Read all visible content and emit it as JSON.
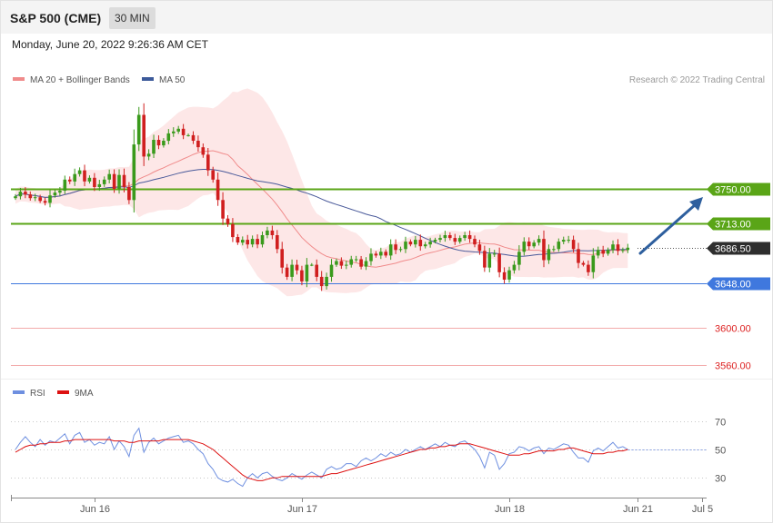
{
  "header": {
    "instrument": "S&P 500 (CME)",
    "timeframe": "30 MIN",
    "datetime": "Monday, June 20, 2022 9:26:36 AM CET",
    "credit": "Research © 2022 Trading Central"
  },
  "colors": {
    "bull": "#3a9a1c",
    "bear": "#d01f1f",
    "band_fill": "#fde3e3",
    "ma20": "#f08b8b",
    "ma50": "#4a5a9a",
    "green_level": "#5aa517",
    "blue_level": "#3f78de",
    "red_level": "#f2aaaa",
    "current": "#2e2e2e",
    "rsi": "#6e8fe0",
    "rsi_ma": "#dd1111",
    "arrow": "#2e5f9e"
  },
  "chart_data": [
    {
      "type": "candlestick",
      "legend": [
        {
          "label": "MA 20 + Bollinger Bands",
          "color": "#f08b8b"
        },
        {
          "label": "MA 50",
          "color": "#3c5a9a"
        }
      ],
      "x_ticks": [
        "Jun 16",
        "Jun 17",
        "Jun 18",
        "Jun 21",
        "Jul 5"
      ],
      "levels": [
        {
          "label": "3750.00",
          "value": 3750,
          "kind": "resistance"
        },
        {
          "label": "3713.00",
          "value": 3713,
          "kind": "resistance"
        },
        {
          "label": "3686.50",
          "value": 3686.5,
          "kind": "current"
        },
        {
          "label": "3648.00",
          "value": 3648,
          "kind": "support"
        },
        {
          "label": "3600.00",
          "value": 3600,
          "kind": "target"
        },
        {
          "label": "3560.00",
          "value": 3560,
          "kind": "target"
        }
      ],
      "ylim": [
        3545,
        3855
      ],
      "close": [
        3742,
        3747,
        3744,
        3740,
        3741,
        3737,
        3735,
        3743,
        3746,
        3748,
        3760,
        3758,
        3766,
        3770,
        3758,
        3762,
        3752,
        3755,
        3760,
        3766,
        3750,
        3765,
        3752,
        3738,
        3798,
        3830,
        3785,
        3788,
        3803,
        3797,
        3802,
        3810,
        3812,
        3815,
        3808,
        3808,
        3802,
        3795,
        3787,
        3770,
        3760,
        3738,
        3718,
        3712,
        3698,
        3692,
        3695,
        3690,
        3696,
        3690,
        3700,
        3705,
        3700,
        3685,
        3665,
        3655,
        3668,
        3662,
        3650,
        3668,
        3668,
        3655,
        3645,
        3655,
        3668,
        3672,
        3667,
        3668,
        3674,
        3674,
        3666,
        3672,
        3680,
        3678,
        3682,
        3678,
        3690,
        3684,
        3685,
        3693,
        3690,
        3695,
        3688,
        3690,
        3693,
        3695,
        3697,
        3700,
        3697,
        3693,
        3697,
        3700,
        3696,
        3690,
        3683,
        3665,
        3680,
        3680,
        3660,
        3652,
        3662,
        3668,
        3682,
        3693,
        3688,
        3692,
        3696,
        3673,
        3685,
        3685,
        3693,
        3695,
        3695,
        3685,
        3670,
        3668,
        3660,
        3678,
        3684,
        3680,
        3684,
        3690,
        3683,
        3684,
        3686.5
      ],
      "rsi": {
        "legend": [
          {
            "label": "RSI",
            "color": "#6e8fe0"
          },
          {
            "label": "9MA",
            "color": "#dd1111"
          }
        ],
        "ticks": [
          70,
          50,
          30
        ],
        "ylim": [
          18,
          82
        ],
        "rsi_values": [
          50,
          55,
          59,
          55,
          52,
          57,
          53,
          56,
          55,
          58,
          61,
          54,
          60,
          62,
          55,
          57,
          53,
          55,
          54,
          59,
          50,
          56,
          52,
          45,
          60,
          65,
          48,
          55,
          58,
          54,
          56,
          58,
          59,
          60,
          55,
          56,
          54,
          50,
          47,
          40,
          36,
          30,
          28,
          27,
          29,
          26,
          24,
          30,
          33,
          30,
          33,
          34,
          31,
          29,
          28,
          30,
          33,
          31,
          29,
          32,
          34,
          32,
          30,
          36,
          38,
          36,
          37,
          40,
          40,
          38,
          42,
          44,
          42,
          44,
          47,
          45,
          48,
          46,
          47,
          50,
          48,
          50,
          52,
          50,
          52,
          54,
          52,
          55,
          53,
          52,
          55,
          56,
          53,
          50,
          45,
          37,
          48,
          46,
          36,
          40,
          47,
          48,
          52,
          51,
          49,
          51,
          52,
          47,
          51,
          50,
          52,
          54,
          53,
          48,
          44,
          44,
          41,
          49,
          51,
          49,
          52,
          55,
          51,
          52,
          50
        ],
        "ma_values": [
          48,
          50,
          52,
          53,
          53,
          54,
          54,
          55,
          55,
          55,
          56,
          56,
          57,
          57,
          57,
          57,
          57,
          57,
          57,
          57,
          56,
          56,
          56,
          55,
          55,
          56,
          56,
          56,
          56,
          56,
          57,
          57,
          57,
          57,
          57,
          57,
          56,
          55,
          54,
          52,
          50,
          47,
          44,
          41,
          38,
          35,
          32,
          30,
          29,
          28,
          28,
          29,
          30,
          30,
          31,
          31,
          31,
          31,
          31,
          31,
          31,
          31,
          31,
          32,
          33,
          33,
          34,
          35,
          36,
          37,
          38,
          39,
          40,
          41,
          42,
          43,
          44,
          45,
          46,
          47,
          48,
          49,
          50,
          50,
          51,
          51,
          52,
          52,
          53,
          53,
          54,
          54,
          54,
          53,
          52,
          51,
          50,
          49,
          48,
          47,
          46,
          46,
          46,
          47,
          47,
          48,
          49,
          49,
          49,
          49,
          50,
          50,
          51,
          51,
          50,
          49,
          48,
          47,
          47,
          47,
          48,
          48,
          49,
          49,
          50
        ]
      }
    }
  ]
}
